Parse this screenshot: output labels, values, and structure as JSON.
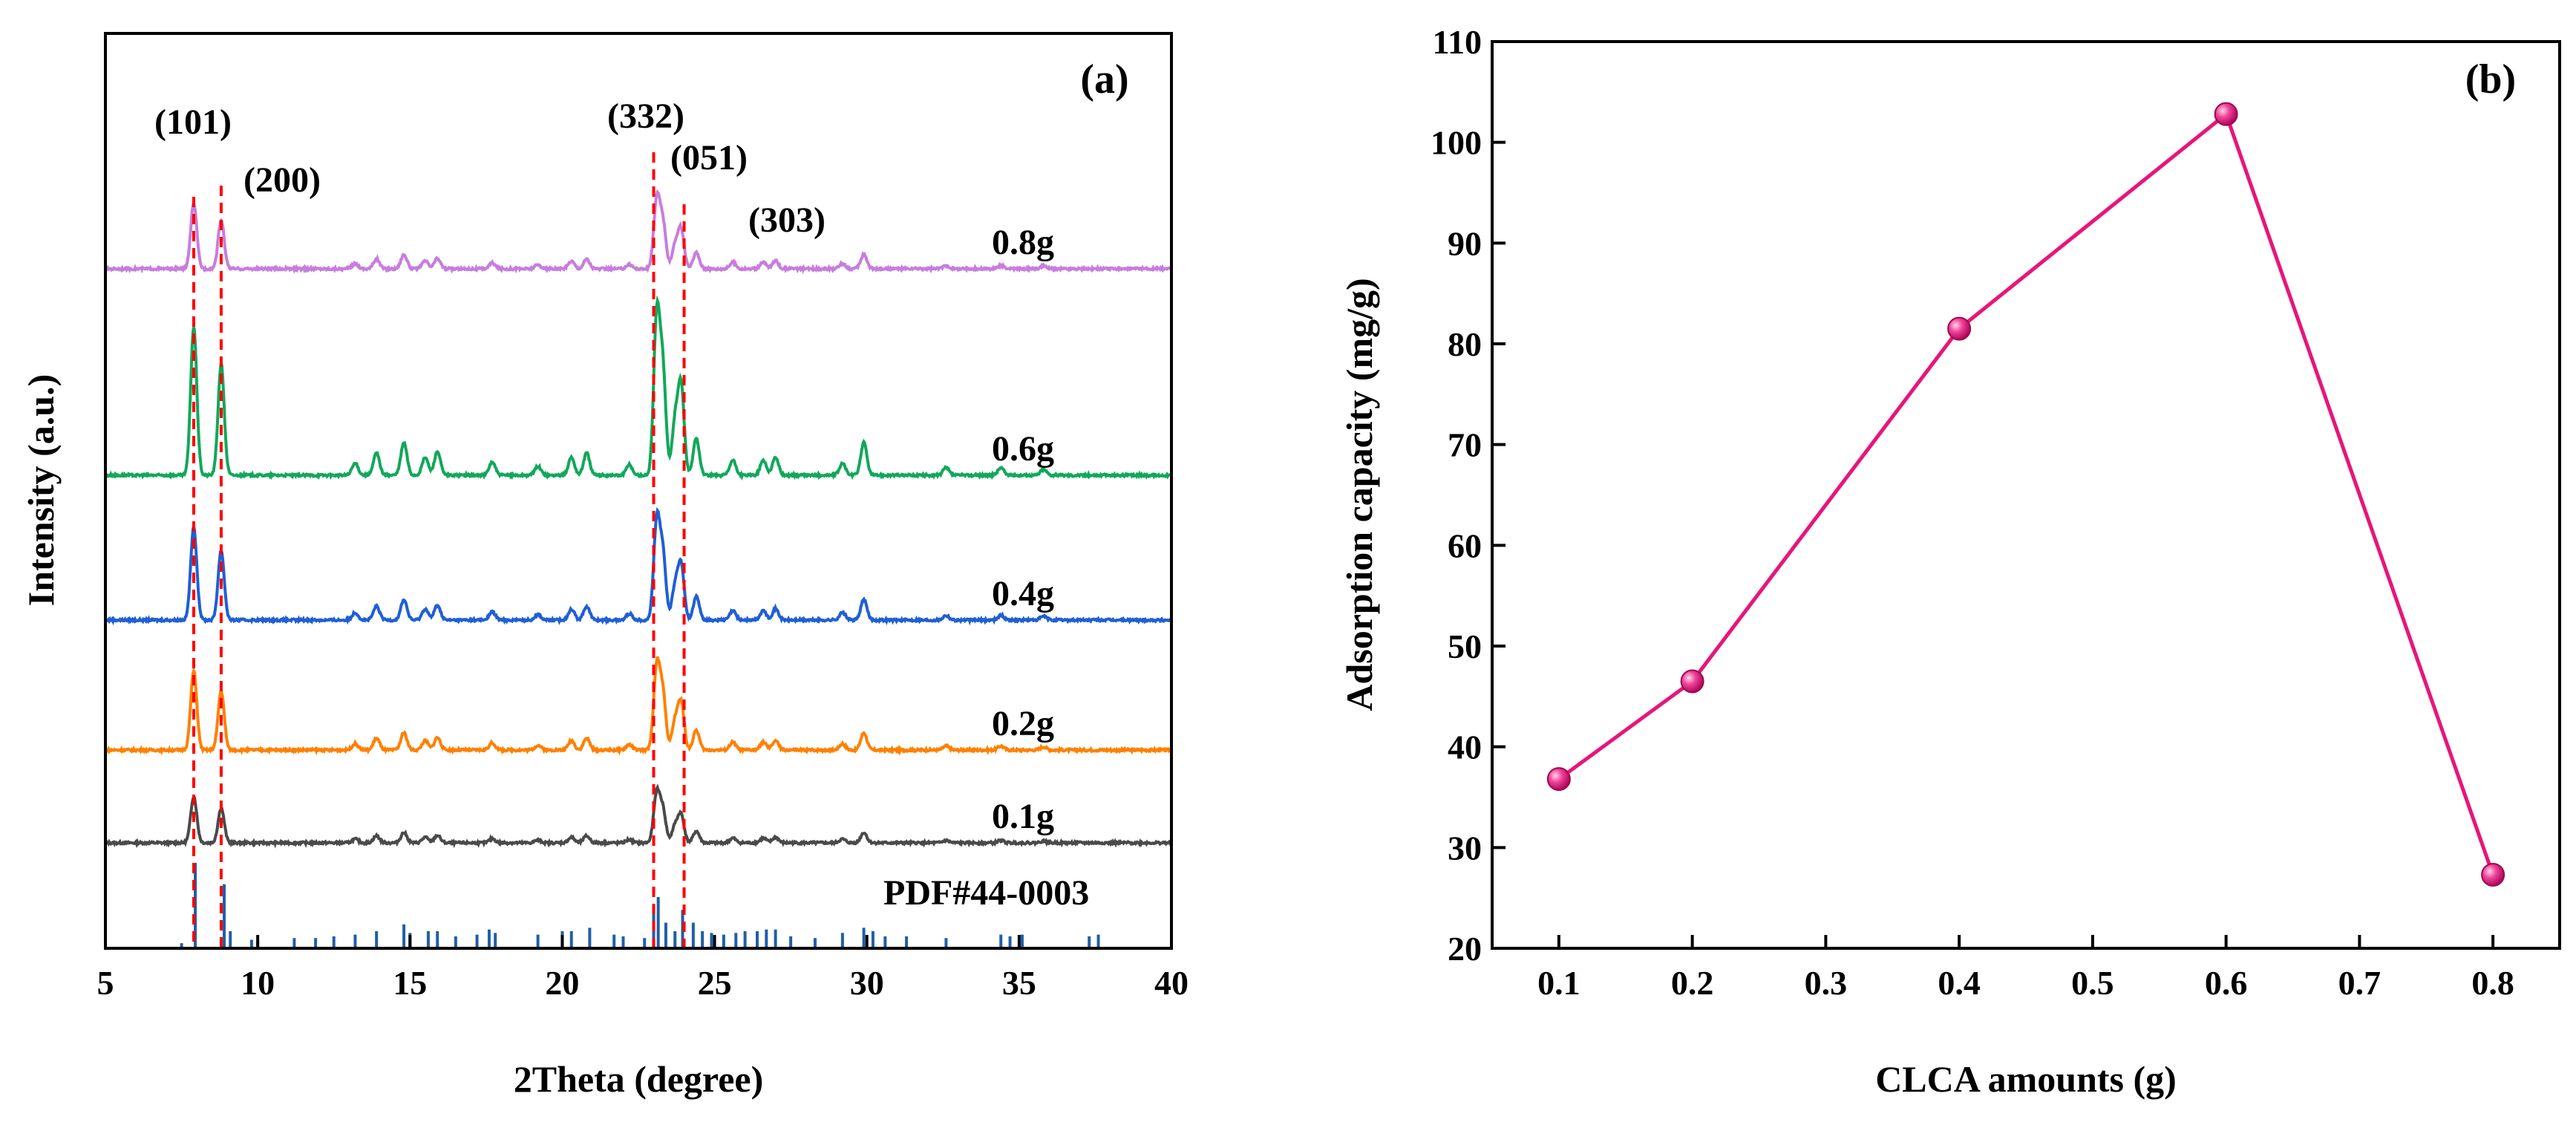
{
  "chart_data": [
    {
      "type": "line",
      "panel_label": "(a)",
      "xlabel": "2Theta (degree)",
      "ylabel": "Intensity (a.u.)",
      "xlim": [
        5,
        40
      ],
      "xticks": [
        5,
        10,
        15,
        20,
        25,
        30,
        35,
        40
      ],
      "yticks_shown": false,
      "grid": false,
      "series": [
        {
          "name": "0.1g",
          "color": "#4a4a4a",
          "peak_scale": 0.5
        },
        {
          "name": "0.2g",
          "color": "#ff8000",
          "peak_scale": 0.85
        },
        {
          "name": "0.4g",
          "color": "#1f5fd6",
          "peak_scale": 1.0
        },
        {
          "name": "0.6g",
          "color": "#11a85a",
          "peak_scale": 1.6
        },
        {
          "name": "0.8g",
          "color": "#c77dde",
          "peak_scale": 0.7
        }
      ],
      "peaks_2theta": [
        {
          "x": 7.9,
          "h": 1.0
        },
        {
          "x": 8.8,
          "h": 0.75
        },
        {
          "x": 13.2,
          "h": 0.08
        },
        {
          "x": 13.9,
          "h": 0.15
        },
        {
          "x": 14.8,
          "h": 0.22
        },
        {
          "x": 15.5,
          "h": 0.12
        },
        {
          "x": 15.9,
          "h": 0.16
        },
        {
          "x": 17.7,
          "h": 0.09
        },
        {
          "x": 19.2,
          "h": 0.06
        },
        {
          "x": 20.3,
          "h": 0.12
        },
        {
          "x": 20.8,
          "h": 0.15
        },
        {
          "x": 22.2,
          "h": 0.07
        },
        {
          "x": 23.1,
          "h": 1.05
        },
        {
          "x": 23.3,
          "h": 0.7
        },
        {
          "x": 23.7,
          "h": 0.35
        },
        {
          "x": 23.9,
          "h": 0.6
        },
        {
          "x": 24.4,
          "h": 0.25
        },
        {
          "x": 25.6,
          "h": 0.1
        },
        {
          "x": 26.6,
          "h": 0.1
        },
        {
          "x": 27.0,
          "h": 0.12
        },
        {
          "x": 29.2,
          "h": 0.08
        },
        {
          "x": 29.9,
          "h": 0.22
        },
        {
          "x": 32.6,
          "h": 0.05
        },
        {
          "x": 34.4,
          "h": 0.05
        },
        {
          "x": 35.8,
          "h": 0.04
        }
      ],
      "miller_indices": [
        {
          "label": "(101)",
          "x": 7.9
        },
        {
          "label": "(200)",
          "x": 8.8
        },
        {
          "label": "(332)",
          "x": 23.0
        },
        {
          "label": "(051)",
          "x": 23.4
        },
        {
          "label": "(303)",
          "x": 24.0
        }
      ],
      "reference": {
        "name": "PDF#44-0003",
        "color": "#1f5fa8",
        "lines": [
          {
            "x": 7.5,
            "h": 0.06
          },
          {
            "x": 7.95,
            "h": 1.0
          },
          {
            "x": 8.9,
            "h": 0.75
          },
          {
            "x": 9.1,
            "h": 0.2
          },
          {
            "x": 9.8,
            "h": 0.1
          },
          {
            "x": 10.0,
            "h": 0.08
          },
          {
            "x": 11.2,
            "h": 0.12
          },
          {
            "x": 11.9,
            "h": 0.12
          },
          {
            "x": 12.5,
            "h": 0.14
          },
          {
            "x": 13.2,
            "h": 0.16
          },
          {
            "x": 13.9,
            "h": 0.2
          },
          {
            "x": 14.8,
            "h": 0.28
          },
          {
            "x": 15.0,
            "h": 0.18
          },
          {
            "x": 15.6,
            "h": 0.2
          },
          {
            "x": 15.9,
            "h": 0.2
          },
          {
            "x": 16.5,
            "h": 0.14
          },
          {
            "x": 17.2,
            "h": 0.16
          },
          {
            "x": 17.6,
            "h": 0.22
          },
          {
            "x": 17.8,
            "h": 0.18
          },
          {
            "x": 19.2,
            "h": 0.16
          },
          {
            "x": 20.0,
            "h": 0.2
          },
          {
            "x": 20.3,
            "h": 0.2
          },
          {
            "x": 20.9,
            "h": 0.24
          },
          {
            "x": 21.7,
            "h": 0.16
          },
          {
            "x": 22.0,
            "h": 0.14
          },
          {
            "x": 22.7,
            "h": 0.12
          },
          {
            "x": 23.0,
            "h": 0.45
          },
          {
            "x": 23.15,
            "h": 0.6
          },
          {
            "x": 23.4,
            "h": 0.3
          },
          {
            "x": 23.7,
            "h": 0.2
          },
          {
            "x": 23.95,
            "h": 0.45
          },
          {
            "x": 24.3,
            "h": 0.3
          },
          {
            "x": 24.6,
            "h": 0.2
          },
          {
            "x": 24.9,
            "h": 0.18
          },
          {
            "x": 25.3,
            "h": 0.16
          },
          {
            "x": 25.7,
            "h": 0.18
          },
          {
            "x": 26.0,
            "h": 0.2
          },
          {
            "x": 26.4,
            "h": 0.2
          },
          {
            "x": 26.7,
            "h": 0.22
          },
          {
            "x": 27.0,
            "h": 0.22
          },
          {
            "x": 27.5,
            "h": 0.14
          },
          {
            "x": 28.3,
            "h": 0.12
          },
          {
            "x": 29.2,
            "h": 0.18
          },
          {
            "x": 29.9,
            "h": 0.24
          },
          {
            "x": 30.2,
            "h": 0.2
          },
          {
            "x": 30.6,
            "h": 0.14
          },
          {
            "x": 31.3,
            "h": 0.14
          },
          {
            "x": 32.6,
            "h": 0.12
          },
          {
            "x": 34.4,
            "h": 0.16
          },
          {
            "x": 34.7,
            "h": 0.14
          },
          {
            "x": 35.1,
            "h": 0.16
          },
          {
            "x": 37.3,
            "h": 0.14
          },
          {
            "x": 37.6,
            "h": 0.16
          }
        ]
      },
      "guide_line_color": "#ff0000"
    },
    {
      "type": "line",
      "panel_label": "(b)",
      "xlabel": "CLCA amounts (g)",
      "ylabel": "Adsorption capacity (mg/g)",
      "x": [
        0.1,
        0.2,
        0.4,
        0.6,
        0.8
      ],
      "values": [
        36.8,
        46.5,
        81.5,
        102.8,
        27.3
      ],
      "xlim": [
        0.05,
        0.85
      ],
      "ylim": [
        20,
        110
      ],
      "xticks": [
        0.1,
        0.2,
        0.3,
        0.4,
        0.5,
        0.6,
        0.7,
        0.8
      ],
      "xtick_labels": [
        "0.1",
        "0.2",
        "0.3",
        "0.4",
        "0.5",
        "0.6",
        "0.7",
        "0.8"
      ],
      "yticks": [
        20,
        30,
        40,
        50,
        60,
        70,
        80,
        90,
        100,
        110
      ],
      "ytick_labels": [
        "20",
        "30",
        "40",
        "50",
        "60",
        "70",
        "80",
        "90",
        "100",
        "110"
      ],
      "grid": false,
      "line_color": "#e8157a",
      "marker_color": "#e8157a"
    }
  ]
}
